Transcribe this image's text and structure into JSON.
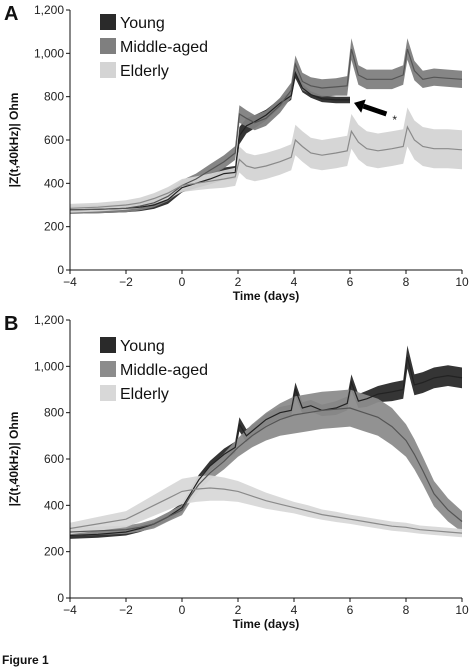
{
  "caption_fragment": "Figure 1",
  "chart_data": [
    {
      "panel_label": "A",
      "type": "line",
      "xlabel": "Time (days)",
      "ylabel": "|Z(t,40kHz)| Ohm",
      "xlim": [
        -4,
        10
      ],
      "ylim": [
        0,
        1200
      ],
      "xticks": [
        -4,
        -2,
        0,
        2,
        4,
        6,
        8,
        10
      ],
      "xtick_labels": [
        "−4",
        "−2",
        "0",
        "2",
        "4",
        "6",
        "8",
        "10"
      ],
      "yticks": [
        0,
        200,
        400,
        600,
        800,
        1000,
        1200
      ],
      "ytick_labels": [
        "0",
        "200",
        "400",
        "600",
        "800",
        "1,000",
        "1,200"
      ],
      "grid": false,
      "legend_position": "top-left",
      "annotations": [
        {
          "text": "*",
          "kind": "arrow",
          "points_to": {
            "x": 6,
            "y": 790
          },
          "from": {
            "x": 7.3,
            "y": 720
          }
        }
      ],
      "series": [
        {
          "name": "Young",
          "color": "#222222",
          "band_color": "#2a2a2a",
          "x": [
            -4,
            -3,
            -2,
            -1.5,
            -1,
            -0.5,
            0,
            0.5,
            1,
            1.5,
            1.9,
            2.05,
            2.3,
            2.6,
            3,
            3.5,
            3.9,
            4.05,
            4.3,
            4.6,
            5,
            5.5,
            6
          ],
          "y": [
            278,
            280,
            285,
            290,
            300,
            325,
            380,
            400,
            420,
            445,
            450,
            620,
            665,
            685,
            715,
            770,
            805,
            910,
            840,
            810,
            790,
            785,
            785
          ],
          "sd": [
            18,
            18,
            18,
            18,
            18,
            20,
            22,
            22,
            25,
            28,
            30,
            40,
            35,
            30,
            25,
            20,
            20,
            25,
            20,
            15,
            15,
            15,
            15
          ]
        },
        {
          "name": "Middle-aged",
          "color": "#555555",
          "band_color": "#7f7f7f",
          "x": [
            -4,
            -3,
            -2,
            -1.5,
            -1,
            -0.5,
            0,
            0.5,
            1,
            1.5,
            1.9,
            2.05,
            2.3,
            2.6,
            3,
            3.5,
            3.9,
            4.05,
            4.3,
            4.6,
            5,
            5.5,
            5.9,
            6.05,
            6.3,
            6.6,
            7,
            7.5,
            7.9,
            8.05,
            8.3,
            8.6,
            9,
            9.5,
            10
          ],
          "y": [
            278,
            280,
            285,
            295,
            310,
            340,
            390,
            420,
            460,
            500,
            540,
            720,
            700,
            680,
            700,
            760,
            830,
            950,
            870,
            850,
            840,
            845,
            850,
            1020,
            900,
            880,
            880,
            880,
            900,
            1020,
            920,
            880,
            890,
            885,
            880
          ],
          "sd": [
            18,
            18,
            18,
            20,
            20,
            22,
            25,
            25,
            28,
            30,
            32,
            40,
            38,
            35,
            35,
            35,
            35,
            40,
            40,
            40,
            40,
            40,
            45,
            50,
            45,
            45,
            45,
            45,
            45,
            50,
            45,
            40,
            40,
            40,
            40
          ]
        },
        {
          "name": "Elderly",
          "color": "#8a8a8a",
          "band_color": "#d4d4d4",
          "x": [
            -4,
            -3,
            -2,
            -1.5,
            -1,
            -0.5,
            0,
            0.5,
            1,
            1.5,
            1.9,
            2.05,
            2.3,
            2.6,
            3,
            3.5,
            3.9,
            4.05,
            4.3,
            4.6,
            5,
            5.5,
            5.9,
            6.05,
            6.3,
            6.6,
            7,
            7.5,
            7.9,
            8.05,
            8.3,
            8.6,
            9,
            9.5,
            10
          ],
          "y": [
            285,
            290,
            300,
            310,
            330,
            355,
            390,
            400,
            410,
            420,
            430,
            510,
            480,
            470,
            480,
            500,
            520,
            600,
            570,
            540,
            530,
            540,
            550,
            640,
            590,
            560,
            550,
            560,
            570,
            660,
            600,
            570,
            560,
            560,
            555
          ],
          "sd": [
            20,
            20,
            22,
            24,
            25,
            28,
            30,
            32,
            35,
            40,
            42,
            60,
            60,
            60,
            60,
            60,
            60,
            70,
            70,
            70,
            70,
            70,
            70,
            80,
            80,
            80,
            80,
            80,
            80,
            90,
            90,
            90,
            90,
            90,
            90
          ]
        }
      ]
    },
    {
      "panel_label": "B",
      "type": "line",
      "xlabel": "Time (days)",
      "ylabel": "|Z(t,40kHz)| Ohm",
      "xlim": [
        -4,
        10
      ],
      "ylim": [
        0,
        1200
      ],
      "xticks": [
        -4,
        -2,
        0,
        2,
        4,
        6,
        8,
        10
      ],
      "xtick_labels": [
        "−4",
        "−2",
        "0",
        "2",
        "4",
        "6",
        "8",
        "10"
      ],
      "yticks": [
        0,
        200,
        400,
        600,
        800,
        1000,
        1200
      ],
      "ytick_labels": [
        "0",
        "200",
        "400",
        "600",
        "800",
        "1,000",
        "1,200"
      ],
      "grid": false,
      "legend_position": "top-left",
      "series": [
        {
          "name": "Young",
          "color": "#222222",
          "band_color": "#2a2a2a",
          "x": [
            -4,
            -3,
            -2,
            -1.5,
            -1,
            -0.5,
            0,
            0.3,
            0.6,
            1,
            1.5,
            1.9,
            2.05,
            2.3,
            2.6,
            3,
            3.5,
            3.9,
            4.05,
            4.3,
            4.6,
            5,
            5.5,
            5.9,
            6.05,
            6.3,
            6.6,
            7,
            7.5,
            7.9,
            8.05,
            8.3,
            8.6,
            9,
            9.5,
            10
          ],
          "y": [
            270,
            275,
            285,
            300,
            320,
            350,
            390,
            450,
            510,
            570,
            620,
            650,
            750,
            700,
            730,
            770,
            800,
            810,
            900,
            820,
            830,
            810,
            820,
            840,
            930,
            850,
            860,
            880,
            890,
            900,
            1040,
            920,
            930,
            950,
            960,
            950
          ],
          "sd": [
            15,
            15,
            15,
            15,
            15,
            18,
            20,
            20,
            22,
            22,
            25,
            25,
            30,
            28,
            25,
            25,
            25,
            25,
            30,
            25,
            25,
            25,
            30,
            30,
            35,
            30,
            35,
            35,
            40,
            40,
            50,
            45,
            45,
            45,
            45,
            45
          ]
        },
        {
          "name": "Middle-aged",
          "color": "#555555",
          "band_color": "#8c8c8c",
          "x": [
            -4,
            -3,
            -2,
            -1.5,
            -1,
            -0.5,
            0,
            0.3,
            0.6,
            1,
            1.5,
            2,
            2.5,
            3,
            3.5,
            4,
            4.5,
            5,
            5.5,
            6,
            6.5,
            7,
            7.5,
            8,
            8.3,
            8.6,
            9,
            9.5,
            10
          ],
          "y": [
            285,
            290,
            295,
            305,
            320,
            350,
            380,
            440,
            490,
            540,
            590,
            650,
            700,
            740,
            770,
            790,
            800,
            810,
            815,
            820,
            800,
            780,
            740,
            680,
            620,
            550,
            450,
            380,
            330
          ],
          "sd": [
            18,
            18,
            18,
            18,
            20,
            20,
            22,
            25,
            28,
            30,
            35,
            40,
            50,
            60,
            70,
            80,
            80,
            80,
            80,
            80,
            80,
            80,
            80,
            70,
            65,
            60,
            55,
            50,
            45
          ]
        },
        {
          "name": "Elderly",
          "color": "#8a8a8a",
          "band_color": "#d8d8d8",
          "x": [
            -4,
            -3,
            -2,
            -1.5,
            -1,
            -0.5,
            0,
            0.5,
            1,
            1.5,
            2,
            2.5,
            3,
            3.5,
            4,
            4.5,
            5,
            5.5,
            6,
            6.5,
            7,
            7.5,
            8,
            8.5,
            9,
            9.5,
            10
          ],
          "y": [
            300,
            320,
            340,
            370,
            400,
            430,
            460,
            470,
            475,
            470,
            460,
            440,
            420,
            405,
            390,
            375,
            360,
            350,
            340,
            330,
            320,
            310,
            305,
            295,
            290,
            285,
            280
          ],
          "sd": [
            25,
            30,
            35,
            40,
            45,
            50,
            55,
            55,
            55,
            50,
            45,
            40,
            35,
            30,
            25,
            25,
            22,
            22,
            20,
            20,
            20,
            20,
            20,
            18,
            18,
            18,
            18
          ]
        }
      ]
    }
  ]
}
